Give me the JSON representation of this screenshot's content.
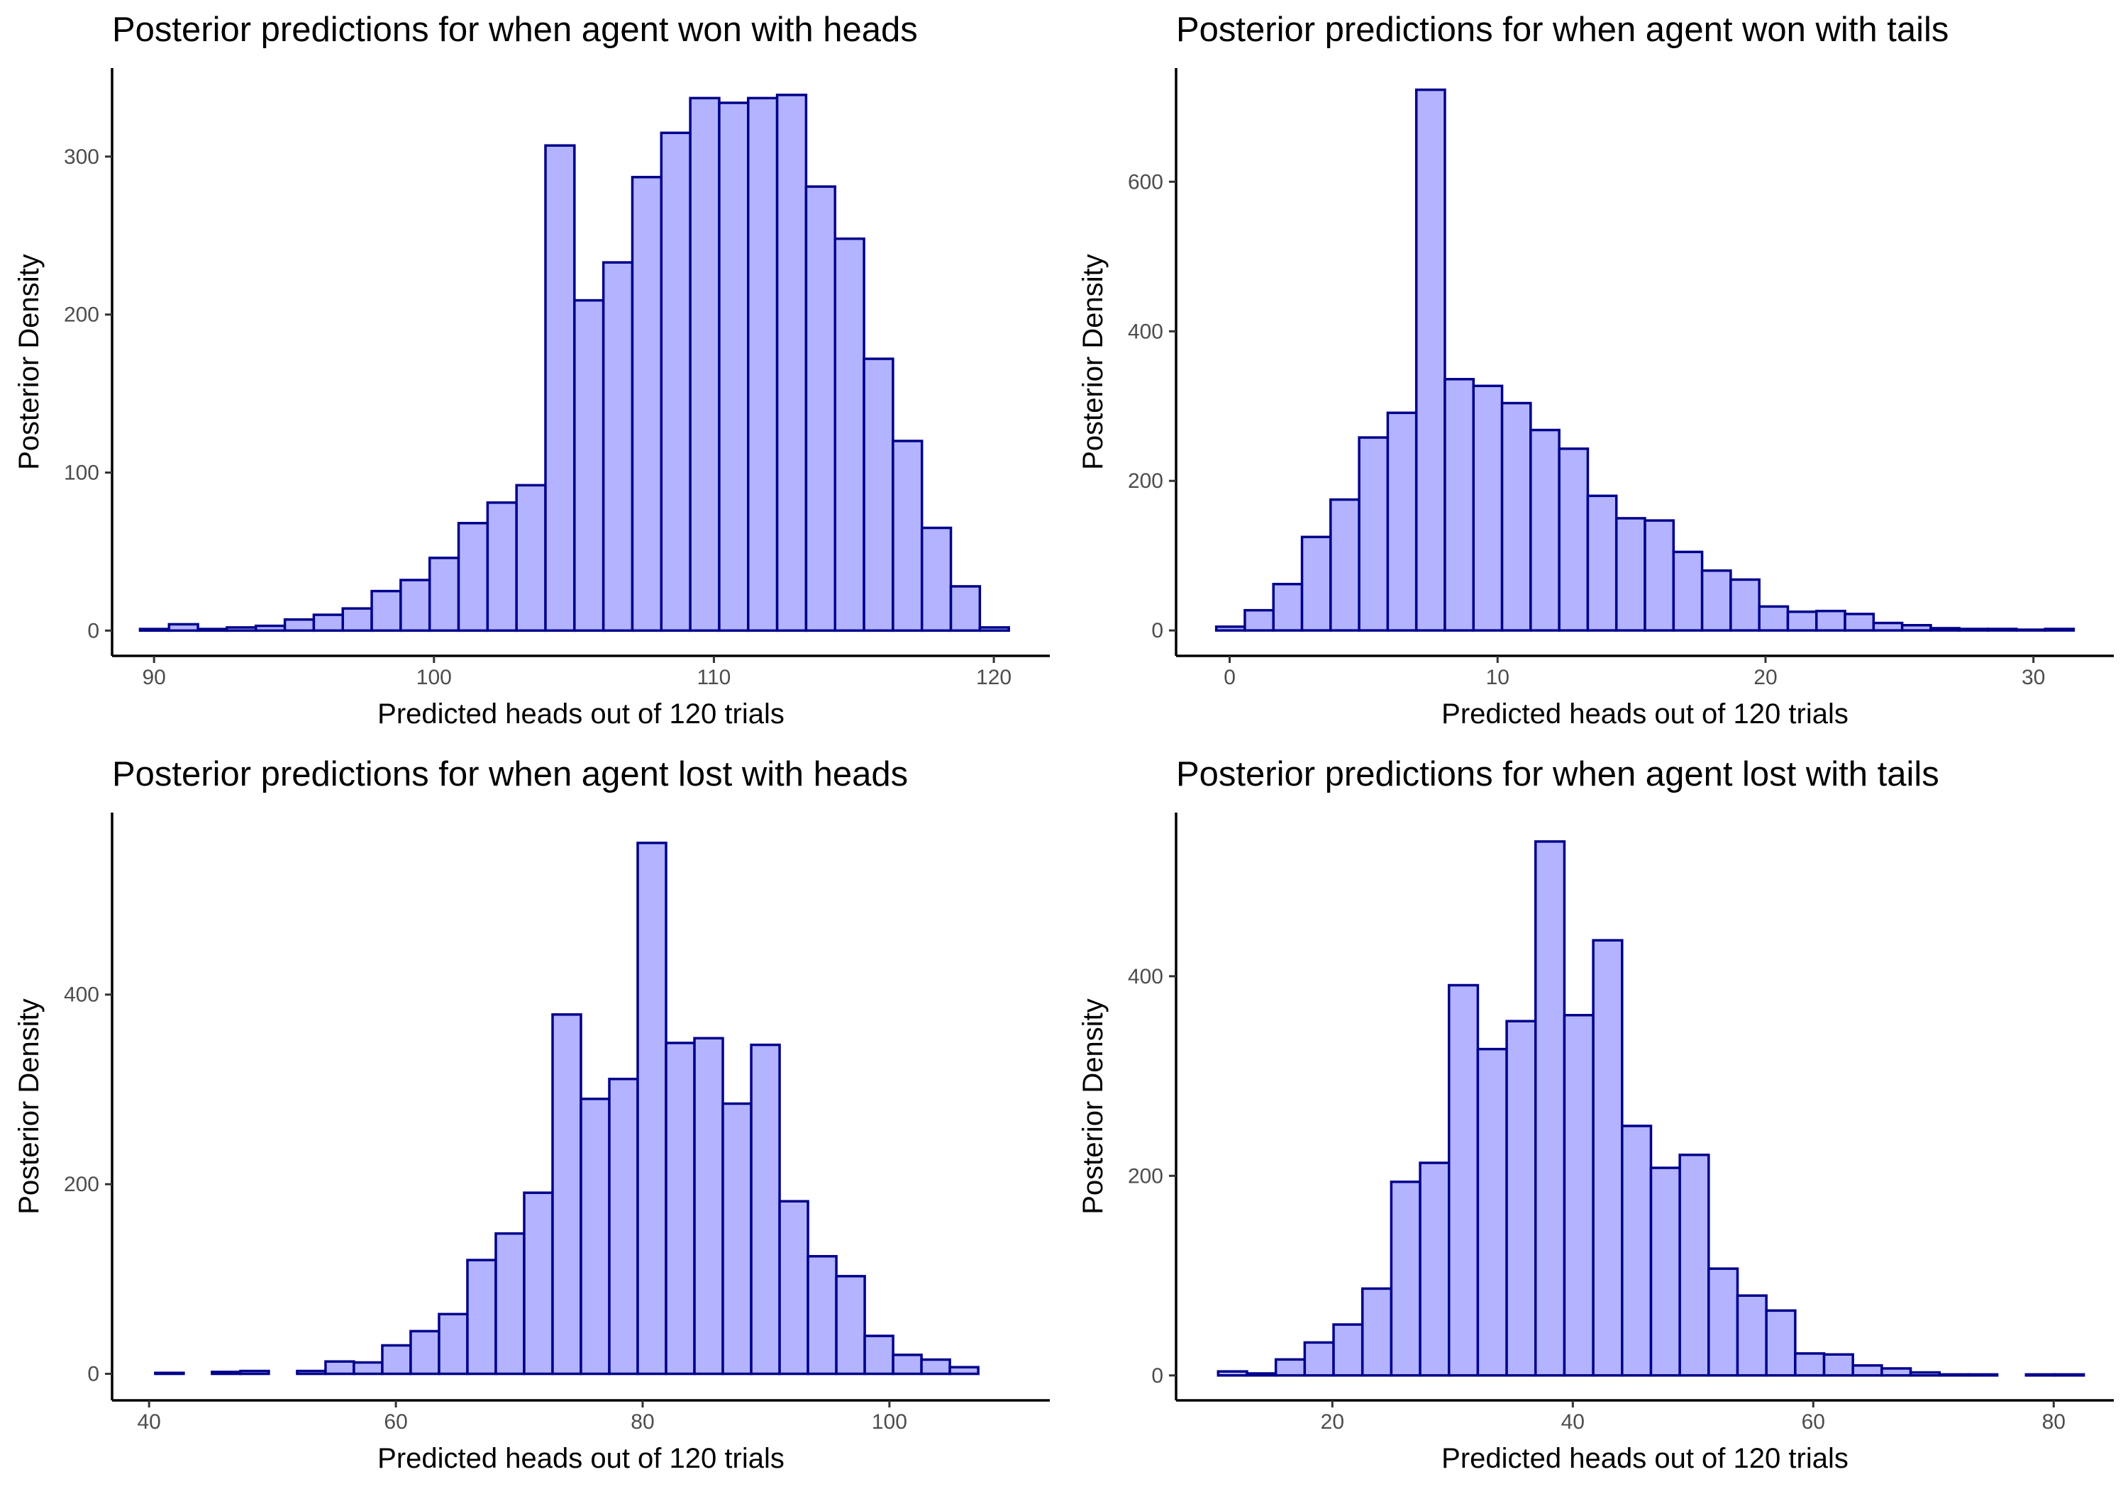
{
  "style": {
    "bar_fill": "#b3b3ff",
    "bar_stroke": "#00008b"
  },
  "chart_data": [
    {
      "type": "bar",
      "title": "Posterior predictions for when agent won with heads",
      "xlabel": "Predicted heads out of 120 trials",
      "ylabel": "Posterior Density",
      "xlim": [
        88.5,
        122
      ],
      "ylim": [
        -16,
        356
      ],
      "x_ticks": [
        90,
        100,
        110,
        120
      ],
      "y_ticks": [
        0,
        100,
        200,
        300
      ],
      "bins": {
        "start": 89.5,
        "width": 1.0345,
        "counts": [
          1,
          4,
          1,
          2,
          3,
          7,
          10,
          14,
          25,
          32,
          46,
          68,
          81,
          92,
          307,
          209,
          233,
          287,
          315,
          337,
          334,
          337,
          339,
          281,
          248,
          172,
          120,
          65,
          28,
          2
        ]
      },
      "grid": false
    },
    {
      "type": "bar",
      "title": "Posterior predictions for when agent won with tails",
      "xlabel": "Predicted heads out of 120 trials",
      "ylabel": "Posterior Density",
      "xlim": [
        -2,
        33
      ],
      "ylim": [
        -34,
        752
      ],
      "x_ticks": [
        0,
        10,
        20,
        30
      ],
      "y_ticks": [
        0,
        200,
        400,
        600
      ],
      "bins": {
        "start": -0.5,
        "width": 1.0667,
        "counts": [
          5,
          27,
          62,
          125,
          175,
          258,
          291,
          723,
          336,
          327,
          304,
          268,
          243,
          180,
          150,
          147,
          105,
          80,
          68,
          32,
          25,
          26,
          22,
          10,
          7,
          3,
          2,
          2,
          1,
          2
        ]
      },
      "grid": false
    },
    {
      "type": "bar",
      "title": "Posterior predictions for when agent lost with heads",
      "xlabel": "Predicted heads out of 120 trials",
      "ylabel": "Posterior Density",
      "xlim": [
        37,
        113
      ],
      "ylim": [
        -28,
        592
      ],
      "x_ticks": [
        40,
        60,
        80,
        100
      ],
      "y_ticks": [
        0,
        200,
        400
      ],
      "bins": {
        "start": 40.5,
        "width": 2.3,
        "counts": [
          1,
          0,
          2,
          3,
          0,
          3,
          13,
          12,
          30,
          45,
          63,
          120,
          148,
          191,
          379,
          290,
          311,
          560,
          349,
          354,
          285,
          347,
          182,
          124,
          103,
          40,
          20,
          15,
          7,
          0
        ]
      },
      "grid": false
    },
    {
      "type": "bar",
      "title": "Posterior predictions for when agent lost with tails",
      "xlabel": "Predicted heads out of 120 trials",
      "ylabel": "Posterior Density",
      "xlim": [
        7,
        85
      ],
      "ylim": [
        -25,
        564
      ],
      "x_ticks": [
        20,
        40,
        60,
        80
      ],
      "y_ticks": [
        0,
        200,
        400
      ],
      "bins": {
        "start": 10.5,
        "width": 2.4,
        "counts": [
          4,
          2,
          16,
          33,
          51,
          87,
          194,
          213,
          391,
          327,
          355,
          535,
          361,
          436,
          250,
          208,
          221,
          107,
          80,
          65,
          22,
          21,
          10,
          7,
          3,
          1,
          1,
          0,
          1,
          1
        ]
      },
      "grid": false
    }
  ]
}
